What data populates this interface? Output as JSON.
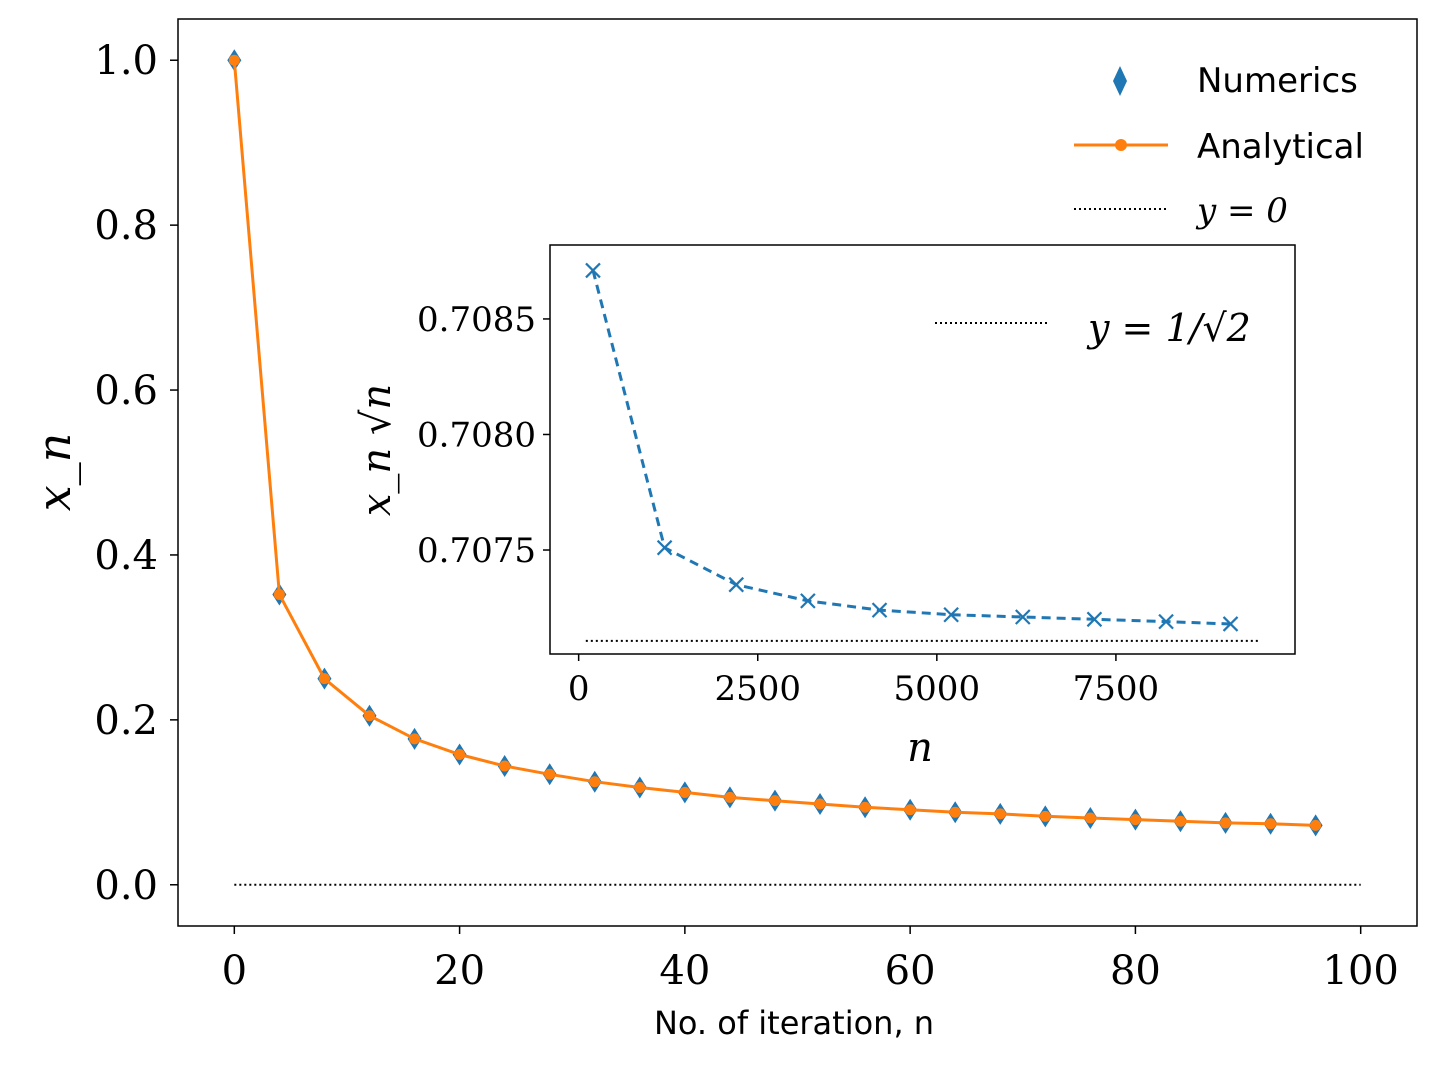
{
  "colors": {
    "numerics": "#1f77b4",
    "analytical": "#ff7f0e",
    "reference": "#000000",
    "axes": "#000000"
  },
  "chart_data": [
    {
      "type": "line",
      "title": "",
      "xlabel": "No. of iteration, n",
      "ylabel": "x_n",
      "xlim": [
        -5,
        105
      ],
      "ylim": [
        -0.05,
        1.05
      ],
      "xticks": [
        0,
        20,
        40,
        60,
        80,
        100
      ],
      "yticks": [
        0.0,
        0.2,
        0.4,
        0.6,
        0.8,
        1.0
      ],
      "xtick_labels": [
        "0",
        "20",
        "40",
        "60",
        "80",
        "100"
      ],
      "ytick_labels": [
        "0.0",
        "0.2",
        "0.4",
        "0.6",
        "0.8",
        "1.0"
      ],
      "legend_position": "top-right",
      "series": [
        {
          "name": "Numerics",
          "style": "diamond markers",
          "x": [
            0,
            4,
            8,
            12,
            16,
            20,
            24,
            28,
            32,
            36,
            40,
            44,
            48,
            52,
            56,
            60,
            64,
            68,
            72,
            76,
            80,
            84,
            88,
            92,
            96
          ],
          "values": [
            1.0,
            0.352,
            0.25,
            0.205,
            0.177,
            0.158,
            0.144,
            0.134,
            0.125,
            0.118,
            0.112,
            0.106,
            0.102,
            0.098,
            0.094,
            0.091,
            0.088,
            0.086,
            0.083,
            0.081,
            0.079,
            0.077,
            0.075,
            0.074,
            0.072
          ]
        },
        {
          "name": "Analytical",
          "style": "solid line with dot markers",
          "x": [
            0,
            4,
            8,
            12,
            16,
            20,
            24,
            28,
            32,
            36,
            40,
            44,
            48,
            52,
            56,
            60,
            64,
            68,
            72,
            76,
            80,
            84,
            88,
            92,
            96
          ],
          "values": [
            1.0,
            0.352,
            0.25,
            0.205,
            0.177,
            0.158,
            0.144,
            0.134,
            0.125,
            0.118,
            0.112,
            0.106,
            0.102,
            0.098,
            0.094,
            0.091,
            0.088,
            0.086,
            0.083,
            0.081,
            0.079,
            0.077,
            0.075,
            0.074,
            0.072
          ]
        },
        {
          "name": "y = 0",
          "style": "dotted line",
          "x": [
            0,
            100
          ],
          "values": [
            0,
            0
          ]
        }
      ]
    },
    {
      "type": "line",
      "title": "",
      "xlabel": "n",
      "ylabel": "x_n √n",
      "xlim": [
        -400,
        10000
      ],
      "ylim": [
        0.70705,
        0.70882
      ],
      "xticks": [
        0,
        2500,
        5000,
        7500
      ],
      "yticks": [
        0.7075,
        0.708,
        0.7085
      ],
      "xtick_labels": [
        "0",
        "2500",
        "5000",
        "7500"
      ],
      "ytick_labels": [
        "0.7075",
        "0.7080",
        "0.7085"
      ],
      "legend_position": "top-right",
      "legend_label": "y = 1/√2",
      "series": [
        {
          "name": "x_n √n",
          "style": "dashed line with x markers",
          "x": [
            200,
            1200,
            2200,
            3200,
            4200,
            5200,
            6200,
            7200,
            8200,
            9100
          ],
          "values": [
            0.70871,
            0.70751,
            0.70735,
            0.70728,
            0.70724,
            0.70722,
            0.70721,
            0.7072,
            0.70719,
            0.70718
          ]
        },
        {
          "name": "y = 1/√2",
          "style": "dotted line",
          "x": [
            100,
            9500
          ],
          "values": [
            0.707107,
            0.707107
          ]
        }
      ]
    }
  ]
}
